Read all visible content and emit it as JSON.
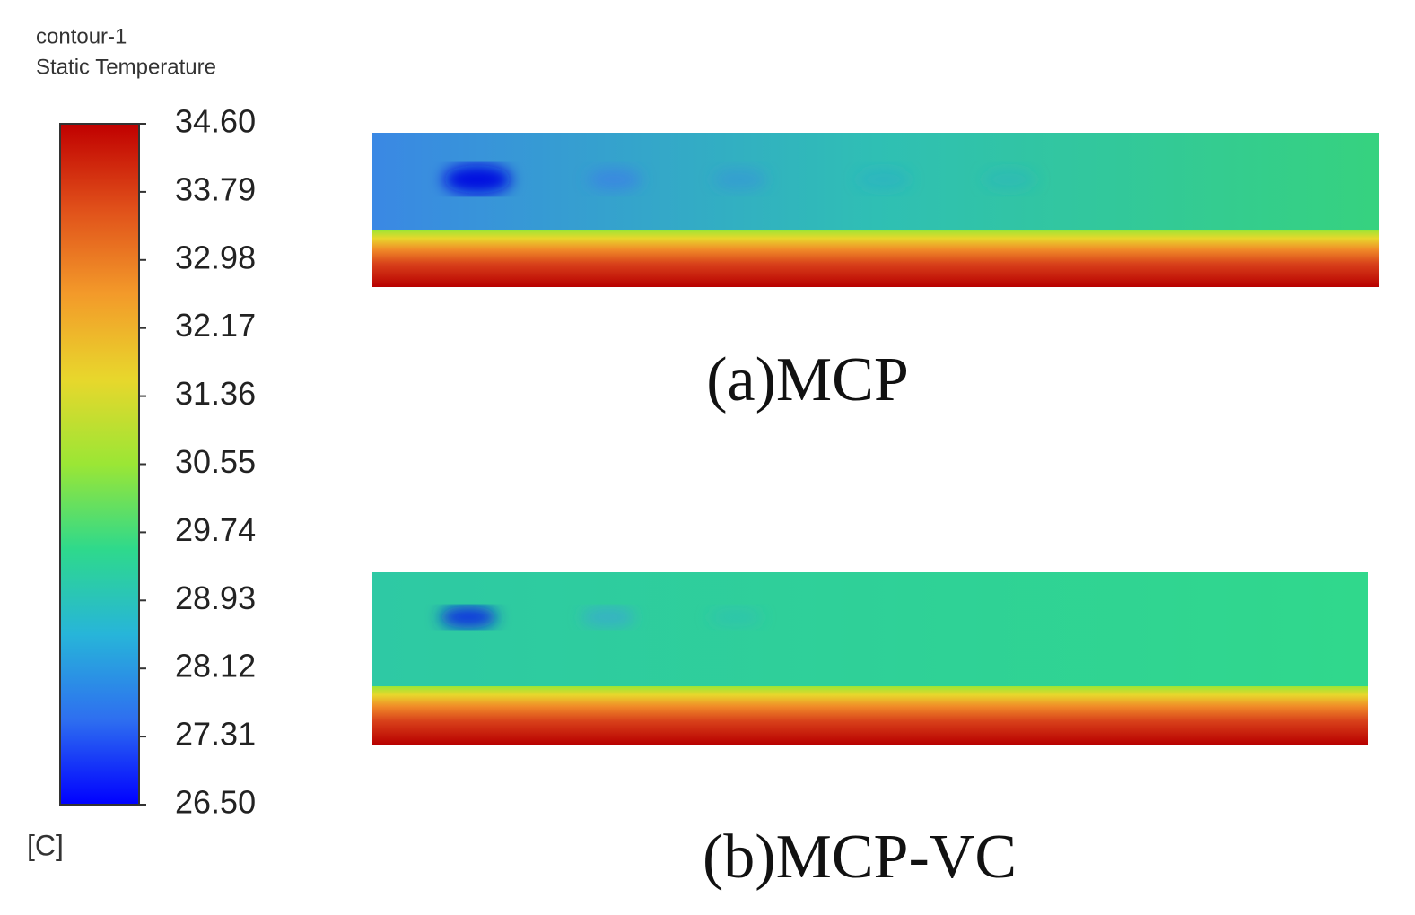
{
  "chart_data": {
    "type": "contour",
    "title": "contour-1",
    "subtitle": "Static Temperature",
    "unit": "[C]",
    "clim": [
      26.5,
      34.6
    ],
    "cticks": [
      {
        "value": 34.6,
        "label": "34.60"
      },
      {
        "value": 33.79,
        "label": "33.79"
      },
      {
        "value": 32.98,
        "label": "32.98"
      },
      {
        "value": 32.17,
        "label": "32.17"
      },
      {
        "value": 31.36,
        "label": "31.36"
      },
      {
        "value": 30.55,
        "label": "30.55"
      },
      {
        "value": 29.74,
        "label": "29.74"
      },
      {
        "value": 28.93,
        "label": "28.93"
      },
      {
        "value": 28.12,
        "label": "28.12"
      },
      {
        "value": 27.31,
        "label": "27.31"
      },
      {
        "value": 26.5,
        "label": "26.50"
      }
    ],
    "colormap": [
      "#0000ff",
      "#2e6ff0",
      "#27b5d9",
      "#2ed98c",
      "#9be635",
      "#e8d72c",
      "#f39a2a",
      "#e0501a",
      "#c00000"
    ],
    "panels": [
      {
        "label": "(a)MCP"
      },
      {
        "label": "(b)MCP-VC"
      }
    ]
  }
}
